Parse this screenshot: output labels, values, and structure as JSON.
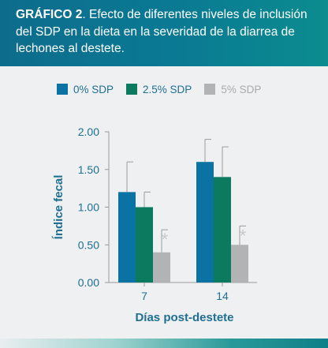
{
  "header": {
    "title_bold": "GRÁFICO 2",
    "title_rest": ". Efecto de diferentes niveles de inclusión del SDP en la dieta en la severidad de la diarrea de lechones al destete."
  },
  "colors": {
    "series": [
      "#0b73a3",
      "#0c7a5e",
      "#b1b3b4"
    ],
    "axis_text": "#1f6f93",
    "asterisk": "#c9c9c9"
  },
  "chart_data": {
    "type": "bar",
    "categories": [
      "7",
      "14"
    ],
    "series": [
      {
        "name": "0% SDP",
        "values": [
          1.2,
          1.6
        ],
        "errors": [
          0.4,
          0.3
        ]
      },
      {
        "name": "2.5% SDP",
        "values": [
          1.0,
          1.4
        ],
        "errors": [
          0.2,
          0.4
        ]
      },
      {
        "name": "5% SDP",
        "values": [
          0.4,
          0.5
        ],
        "errors": [
          0.3,
          0.25
        ]
      }
    ],
    "significance_marks": [
      [
        "",
        "",
        "*"
      ],
      [
        "",
        "",
        "*"
      ]
    ],
    "xlabel": "Días post-destete",
    "ylabel": "Índice fecal",
    "ylim": [
      0,
      2
    ],
    "yticks": [
      "0.00",
      "0.50",
      "1.00",
      "1.50",
      "2.00"
    ],
    "ytick_values": [
      0,
      0.5,
      1,
      1.5,
      2
    ],
    "legend_position": "top",
    "grid": false
  }
}
